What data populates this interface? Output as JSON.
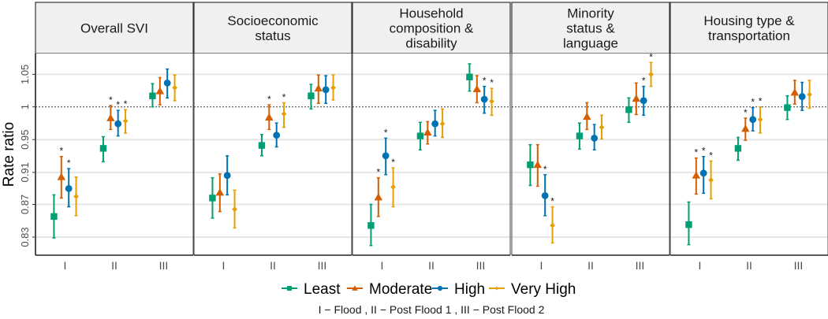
{
  "chart_data": {
    "type": "scatter",
    "subtype": "point-range (faceted, dodged)",
    "ylabel": "Rate ratio",
    "xlabel": "",
    "y_scale": "log",
    "yticks": [
      "0.83",
      "0.87",
      "0.91",
      "0.95",
      "1",
      "1.05"
    ],
    "ytick_values": [
      0.829,
      0.869,
      0.91,
      0.954,
      1.0,
      1.048
    ],
    "ylim": [
      0.81,
      1.075
    ],
    "reference_line": {
      "value": 1,
      "style": "dotted"
    },
    "grid": true,
    "categories": [
      "I",
      "II",
      "III"
    ],
    "caption": "I − Flood , II − Post Flood 1 , III − Post Flood 2",
    "legend": {
      "position": "bottom",
      "entries": [
        {
          "name": "Least",
          "color": "#009E73",
          "shape": "square"
        },
        {
          "name": "Moderate",
          "color": "#D55E00",
          "shape": "triangle"
        },
        {
          "name": "High",
          "color": "#0072B2",
          "shape": "circle"
        },
        {
          "name": "Very High",
          "color": "#E69F00",
          "shape": "diamond"
        }
      ]
    },
    "significance_marker": "*",
    "panels": [
      {
        "title": "Overall SVI",
        "title_lines": [
          "Overall SVI"
        ],
        "series": [
          {
            "name": "Least",
            "values": [
              0.854,
              0.942,
              1.016
            ],
            "lower": [
              0.828,
              0.924,
              1.0
            ],
            "upper": [
              0.881,
              0.958,
              1.034
            ],
            "sig": [
              false,
              false,
              false
            ]
          },
          {
            "name": "Moderate",
            "values": [
              0.904,
              0.984,
              1.023
            ],
            "lower": [
              0.877,
              0.968,
              1.003
            ],
            "upper": [
              0.931,
              1.002,
              1.043
            ],
            "sig": [
              true,
              true,
              false
            ]
          },
          {
            "name": "High",
            "values": [
              0.889,
              0.976,
              1.035
            ],
            "lower": [
              0.866,
              0.959,
              1.013
            ],
            "upper": [
              0.915,
              0.995,
              1.056
            ],
            "sig": [
              true,
              true,
              false
            ]
          },
          {
            "name": "Very High",
            "values": [
              0.879,
              0.98,
              1.028
            ],
            "lower": [
              0.855,
              0.963,
              1.009
            ],
            "upper": [
              0.904,
              0.996,
              1.047
            ],
            "sig": [
              false,
              true,
              false
            ]
          }
        ]
      },
      {
        "title": "Socioeconomic status",
        "title_lines": [
          "Socioeconomic",
          "status"
        ],
        "series": [
          {
            "name": "Least",
            "values": [
              0.877,
              0.946,
              1.016
            ],
            "lower": [
              0.852,
              0.932,
              0.997
            ],
            "upper": [
              0.903,
              0.961,
              1.033
            ],
            "sig": [
              false,
              false,
              false
            ]
          },
          {
            "name": "Moderate",
            "values": [
              0.884,
              0.985,
              1.027
            ],
            "lower": [
              0.86,
              0.968,
              1.005
            ],
            "upper": [
              0.908,
              1.003,
              1.047
            ],
            "sig": [
              false,
              true,
              false
            ]
          },
          {
            "name": "High",
            "values": [
              0.906,
              0.96,
              1.025
            ],
            "lower": [
              0.881,
              0.944,
              1.005
            ],
            "upper": [
              0.932,
              0.977,
              1.046
            ],
            "sig": [
              false,
              false,
              false
            ]
          },
          {
            "name": "Very High",
            "values": [
              0.863,
              0.99,
              1.028
            ],
            "lower": [
              0.84,
              0.971,
              1.01
            ],
            "upper": [
              0.887,
              1.006,
              1.047
            ],
            "sig": [
              false,
              true,
              false
            ]
          }
        ]
      },
      {
        "title": "Household composition & disability",
        "title_lines": [
          "Household",
          "composition &",
          "disability"
        ],
        "series": [
          {
            "name": "Least",
            "values": [
              0.843,
              0.959,
              1.044
            ],
            "lower": [
              0.819,
              0.94,
              1.023
            ],
            "upper": [
              0.869,
              0.978,
              1.064
            ],
            "sig": [
              false,
              false,
              false
            ]
          },
          {
            "name": "Moderate",
            "values": [
              0.878,
              0.964,
              1.026
            ],
            "lower": [
              0.854,
              0.948,
              1.006
            ],
            "upper": [
              0.903,
              0.979,
              1.046
            ],
            "sig": [
              true,
              false,
              false
            ]
          },
          {
            "name": "High",
            "values": [
              0.932,
              0.976,
              1.011
            ],
            "lower": [
              0.907,
              0.959,
              0.991
            ],
            "upper": [
              0.956,
              0.995,
              1.03
            ],
            "sig": [
              true,
              false,
              true
            ]
          },
          {
            "name": "Very High",
            "values": [
              0.891,
              0.976,
              1.008
            ],
            "lower": [
              0.866,
              0.957,
              0.988
            ],
            "upper": [
              0.916,
              0.997,
              1.027
            ],
            "sig": [
              true,
              false,
              true
            ]
          }
        ]
      },
      {
        "title": "Minority status & language",
        "title_lines": [
          "Minority",
          "status &",
          "language"
        ],
        "series": [
          {
            "name": "Least",
            "values": [
              0.92,
              0.959,
              0.996
            ],
            "lower": [
              0.893,
              0.941,
              0.978
            ],
            "upper": [
              0.947,
              0.977,
              1.013
            ],
            "sig": [
              false,
              false,
              false
            ]
          },
          {
            "name": "Moderate",
            "values": [
              0.92,
              0.986,
              1.012
            ],
            "lower": [
              0.892,
              0.968,
              0.989
            ],
            "upper": [
              0.947,
              1.006,
              1.035
            ],
            "sig": [
              false,
              false,
              false
            ]
          },
          {
            "name": "High",
            "values": [
              0.88,
              0.956,
              1.009
            ],
            "lower": [
              0.855,
              0.94,
              0.988
            ],
            "upper": [
              0.907,
              0.975,
              1.03
            ],
            "sig": [
              true,
              false,
              true
            ]
          },
          {
            "name": "Very High",
            "values": [
              0.843,
              0.971,
              1.048
            ],
            "lower": [
              0.822,
              0.955,
              1.03
            ],
            "upper": [
              0.866,
              0.988,
              1.066
            ],
            "sig": [
              true,
              false,
              true
            ]
          }
        ]
      },
      {
        "title": "Housing type & transportation",
        "title_lines": [
          "Housing type &",
          "transportation"
        ],
        "series": [
          {
            "name": "Least",
            "values": [
              0.844,
              0.942,
              0.999
            ],
            "lower": [
              0.82,
              0.926,
              0.982
            ],
            "upper": [
              0.872,
              0.957,
              1.016
            ],
            "sig": [
              false,
              false,
              false
            ]
          },
          {
            "name": "Moderate",
            "values": [
              0.906,
              0.969,
              1.021
            ],
            "lower": [
              0.882,
              0.953,
              1.004
            ],
            "upper": [
              0.929,
              0.984,
              1.039
            ],
            "sig": [
              true,
              true,
              false
            ]
          },
          {
            "name": "High",
            "values": [
              0.909,
              0.982,
              1.015
            ],
            "lower": [
              0.883,
              0.966,
              0.995
            ],
            "upper": [
              0.931,
              0.999,
              1.036
            ],
            "sig": [
              true,
              true,
              false
            ]
          },
          {
            "name": "Very High",
            "values": [
              0.9,
              0.982,
              1.018
            ],
            "lower": [
              0.876,
              0.963,
              0.998
            ],
            "upper": [
              0.925,
              1.0,
              1.039
            ],
            "sig": [
              true,
              true,
              false
            ]
          }
        ]
      }
    ]
  }
}
